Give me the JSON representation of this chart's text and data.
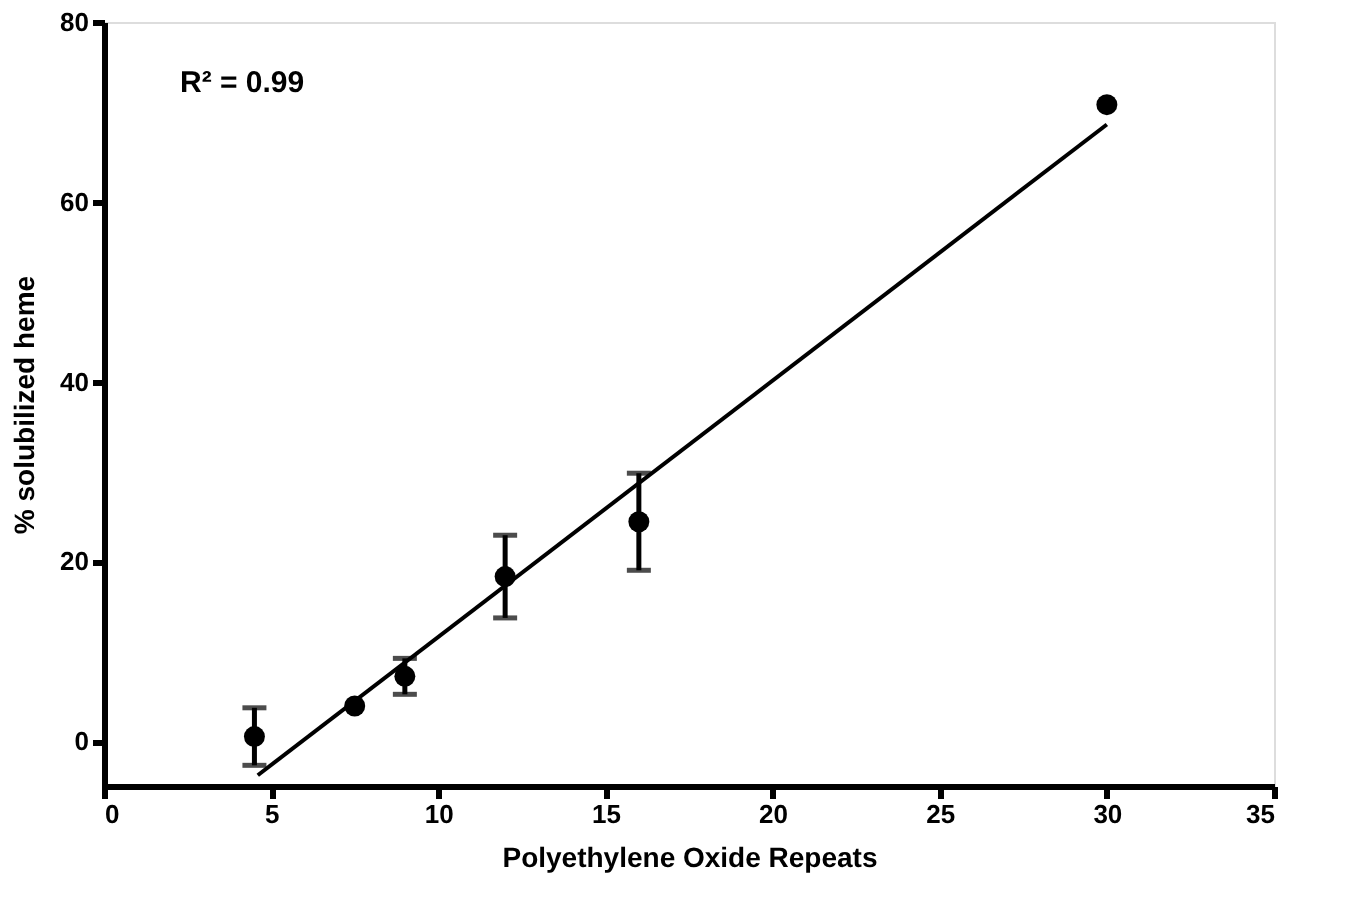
{
  "chart_data": {
    "type": "scatter",
    "xlabel": "Polyethylene Oxide Repeats",
    "ylabel": "% solubilized heme",
    "annotations": [
      "R² = 0.99"
    ],
    "x": [
      4.5,
      7.5,
      9,
      12,
      16,
      30
    ],
    "series": [
      {
        "color": "#000000",
        "values": [
          0.5,
          3.9,
          7.2,
          18.3,
          24.4,
          70.8
        ],
        "errors": [
          3.2,
          null,
          2,
          4.6,
          5.4,
          null
        ],
        "marker": "circle"
      },
      {
        "type": "line",
        "color": "#000000",
        "x": [
          4.6,
          30
        ],
        "values": [
          -3.8,
          68.6
        ],
        "line_style": "solid"
      }
    ],
    "xlim": [
      0,
      35
    ],
    "xticks": [
      0,
      5,
      10,
      15,
      20,
      25,
      30,
      35
    ],
    "ylim": [
      -5,
      80
    ],
    "yticks": [
      0,
      20,
      40,
      60,
      80
    ],
    "grid": false
  }
}
